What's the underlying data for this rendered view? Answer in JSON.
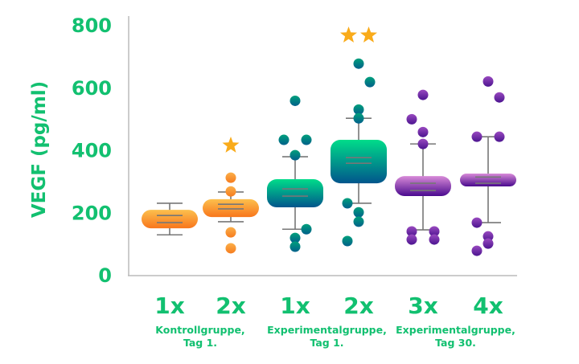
{
  "chart_data": {
    "type": "box",
    "ylabel": "VEGF (pg/ml)",
    "ylim": [
      0,
      800
    ],
    "yticks": [
      0,
      200,
      400,
      600,
      800
    ],
    "grid": false,
    "text_color": "#12c070",
    "axis_color": "#bbbbbb",
    "whisker_color": "#777777",
    "star_color": "#f9ab1a",
    "categories": [
      "1x",
      "2x",
      "1x",
      "2x",
      "3x",
      "4x"
    ],
    "group_labels": [
      {
        "line1": "Kontrollgruppe,",
        "line2": "Tag 1.",
        "categories": [
          0,
          1
        ]
      },
      {
        "line1": "Experimentalgruppe,",
        "line2": "Tag 1.",
        "categories": [
          2,
          3
        ]
      },
      {
        "line1": "Experimentalgruppe,",
        "line2": "Tag 30.",
        "categories": [
          4,
          5
        ]
      }
    ],
    "series": [
      {
        "category": "1x",
        "palette": "orange",
        "box": [
          149,
          208
        ],
        "whiskers": [
          128,
          229
        ],
        "center_lines": [
          167,
          190
        ],
        "outliers": [],
        "stars": 0
      },
      {
        "category": "2x",
        "palette": "orange",
        "box": [
          185,
          242
        ],
        "whiskers": [
          170,
          265
        ],
        "center_lines": [
          211,
          226
        ],
        "outliers": [
          311,
          267,
          136,
          85
        ],
        "stars": 1
      },
      {
        "category": "1x",
        "palette": "teal",
        "box": [
          216,
          306
        ],
        "whiskers": [
          146,
          378
        ],
        "center_lines": [
          252,
          275
        ],
        "outliers": [
          557,
          432,
          432,
          383,
          146,
          118,
          90
        ],
        "stars": 0
      },
      {
        "category": "2x",
        "palette": "teal",
        "box": [
          293,
          432
        ],
        "whiskers": [
          229,
          501
        ],
        "center_lines": [
          357,
          375
        ],
        "outliers": [
          676,
          617,
          529,
          501,
          229,
          200,
          170,
          108
        ],
        "stars": 2
      },
      {
        "category": "3x",
        "palette": "purple",
        "box": [
          252,
          316
        ],
        "whiskers": [
          144,
          419
        ],
        "center_lines": [
          270,
          293
        ],
        "outliers": [
          576,
          498,
          457,
          419,
          139,
          139,
          113,
          113
        ],
        "stars": 0
      },
      {
        "category": "4x",
        "palette": "purple",
        "box": [
          283,
          324
        ],
        "whiskers": [
          167,
          442
        ],
        "center_lines": [
          293,
          313
        ],
        "outliers": [
          619,
          568,
          442,
          442,
          167,
          123,
          100,
          77
        ],
        "stars": 0
      }
    ],
    "palettes": {
      "orange": {
        "box_top": "#fcc04e",
        "box_bottom": "#f8761c",
        "point_top": "#fbb04a",
        "point_bottom": "#f67c1e"
      },
      "teal": {
        "box_top": "#00dc8a",
        "box_bottom": "#01558c",
        "point_top": "#00a07c",
        "point_bottom": "#00608a"
      },
      "purple": {
        "box_top": "#d88ad8",
        "box_bottom": "#4a0a8e",
        "point_top": "#9a4ac0",
        "point_bottom": "#4c1490"
      }
    }
  }
}
